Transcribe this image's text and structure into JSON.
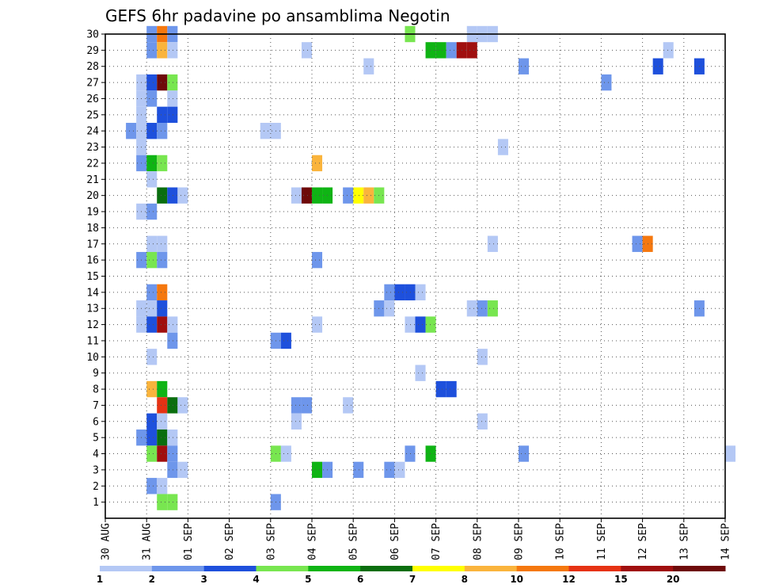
{
  "chart_data": {
    "type": "heatmap",
    "title": "GEFS 6hr padavine po ansamblima Negotin",
    "xlabel": "",
    "ylabel": "",
    "x_ticks": [
      "30 AUG",
      "31 AUG",
      "01 SEP",
      "02 SEP",
      "03 SEP",
      "04 SEP",
      "05 SEP",
      "06 SEP",
      "07 SEP",
      "08 SEP",
      "09 SEP",
      "10 SEP",
      "11 SEP",
      "12 SEP",
      "13 SEP",
      "14 SEP"
    ],
    "y_ticks": [
      "1",
      "2",
      "3",
      "4",
      "5",
      "6",
      "7",
      "8",
      "9",
      "10",
      "11",
      "12",
      "13",
      "14",
      "15",
      "16",
      "17",
      "18",
      "19",
      "20",
      "21",
      "22",
      "23",
      "24",
      "25",
      "26",
      "27",
      "28",
      "29",
      "30"
    ],
    "x_range_days": [
      0,
      15
    ],
    "y_range": [
      0,
      30
    ],
    "time_step_hours": 6,
    "grid": true,
    "colorbar": {
      "labels": [
        "1",
        "2",
        "3",
        "4",
        "5",
        "6",
        "7",
        "8",
        "10",
        "12",
        "15",
        "20"
      ],
      "colors": [
        "#b4c8f5",
        "#6e96eb",
        "#1e50dc",
        "#78e650",
        "#0fb414",
        "#0a6e0f",
        "#ffff00",
        "#fab43c",
        "#f5780f",
        "#e63214",
        "#a00f0f",
        "#6e0a0a"
      ]
    },
    "cells": [
      [
        1,
        30,
        "#6e96eb"
      ],
      [
        1.25,
        30,
        "#f5780f"
      ],
      [
        1.5,
        30,
        "#6e96eb"
      ],
      [
        7.25,
        30,
        "#78e650"
      ],
      [
        8.75,
        30,
        "#b4c8f5"
      ],
      [
        9,
        30,
        "#b4c8f5"
      ],
      [
        9.25,
        30,
        "#b4c8f5"
      ],
      [
        1,
        29,
        "#6e96eb"
      ],
      [
        1.25,
        29,
        "#fab43c"
      ],
      [
        1.5,
        29,
        "#b4c8f5"
      ],
      [
        4.75,
        29,
        "#b4c8f5"
      ],
      [
        7.75,
        29,
        "#0fb414"
      ],
      [
        8,
        29,
        "#0fb414"
      ],
      [
        8.25,
        29,
        "#6e96eb"
      ],
      [
        8.5,
        29,
        "#a00f0f"
      ],
      [
        8.75,
        29,
        "#a00f0f"
      ],
      [
        13.5,
        29,
        "#b4c8f5"
      ],
      [
        6.25,
        28,
        "#b4c8f5"
      ],
      [
        10,
        28,
        "#6e96eb"
      ],
      [
        13.25,
        28,
        "#1e50dc"
      ],
      [
        14.25,
        28,
        "#1e50dc"
      ],
      [
        0.75,
        27,
        "#b4c8f5"
      ],
      [
        1,
        27,
        "#1e50dc"
      ],
      [
        1.25,
        27,
        "#6e0a0a"
      ],
      [
        1.5,
        27,
        "#78e650"
      ],
      [
        12,
        27,
        "#6e96eb"
      ],
      [
        0.75,
        26,
        "#b4c8f5"
      ],
      [
        1,
        26,
        "#6e96eb"
      ],
      [
        1.5,
        26,
        "#b4c8f5"
      ],
      [
        0.75,
        25,
        "#b4c8f5"
      ],
      [
        1.25,
        25,
        "#1e50dc"
      ],
      [
        1.5,
        25,
        "#1e50dc"
      ],
      [
        0.5,
        24,
        "#6e96eb"
      ],
      [
        0.75,
        24,
        "#b4c8f5"
      ],
      [
        1,
        24,
        "#1e50dc"
      ],
      [
        1.25,
        24,
        "#6e96eb"
      ],
      [
        3.75,
        24,
        "#b4c8f5"
      ],
      [
        4,
        24,
        "#b4c8f5"
      ],
      [
        0.75,
        23,
        "#b4c8f5"
      ],
      [
        9.5,
        23,
        "#b4c8f5"
      ],
      [
        0.75,
        22,
        "#6e96eb"
      ],
      [
        1,
        22,
        "#0fb414"
      ],
      [
        1.25,
        22,
        "#78e650"
      ],
      [
        5,
        22,
        "#fab43c"
      ],
      [
        1,
        21,
        "#b4c8f5"
      ],
      [
        1.25,
        20,
        "#0a6e0f"
      ],
      [
        1.5,
        20,
        "#1e50dc"
      ],
      [
        1.75,
        20,
        "#b4c8f5"
      ],
      [
        4.5,
        20,
        "#b4c8f5"
      ],
      [
        4.75,
        20,
        "#6e0a0a"
      ],
      [
        5,
        20,
        "#0fb414"
      ],
      [
        5.25,
        20,
        "#0fb414"
      ],
      [
        5.75,
        20,
        "#6e96eb"
      ],
      [
        6,
        20,
        "#ffff00"
      ],
      [
        6.25,
        20,
        "#fab43c"
      ],
      [
        6.5,
        20,
        "#78e650"
      ],
      [
        0.75,
        19,
        "#b4c8f5"
      ],
      [
        1,
        19,
        "#6e96eb"
      ],
      [
        1,
        17,
        "#b4c8f5"
      ],
      [
        1.25,
        17,
        "#b4c8f5"
      ],
      [
        9.25,
        17,
        "#b4c8f5"
      ],
      [
        12.75,
        17,
        "#6e96eb"
      ],
      [
        13,
        17,
        "#f5780f"
      ],
      [
        0.75,
        16,
        "#6e96eb"
      ],
      [
        1,
        16,
        "#78e650"
      ],
      [
        1.25,
        16,
        "#6e96eb"
      ],
      [
        5,
        16,
        "#6e96eb"
      ],
      [
        1,
        14,
        "#6e96eb"
      ],
      [
        1.25,
        14,
        "#f5780f"
      ],
      [
        6.75,
        14,
        "#6e96eb"
      ],
      [
        7,
        14,
        "#1e50dc"
      ],
      [
        7.25,
        14,
        "#1e50dc"
      ],
      [
        7.5,
        14,
        "#b4c8f5"
      ],
      [
        0.75,
        13,
        "#b4c8f5"
      ],
      [
        1,
        13,
        "#b4c8f5"
      ],
      [
        1.25,
        13,
        "#1e50dc"
      ],
      [
        6.5,
        13,
        "#6e96eb"
      ],
      [
        6.75,
        13,
        "#b4c8f5"
      ],
      [
        8.75,
        13,
        "#b4c8f5"
      ],
      [
        9,
        13,
        "#6e96eb"
      ],
      [
        9.25,
        13,
        "#78e650"
      ],
      [
        14.25,
        13,
        "#6e96eb"
      ],
      [
        0.75,
        12,
        "#b4c8f5"
      ],
      [
        1,
        12,
        "#1e50dc"
      ],
      [
        1.25,
        12,
        "#a00f0f"
      ],
      [
        1.5,
        12,
        "#b4c8f5"
      ],
      [
        5,
        12,
        "#b4c8f5"
      ],
      [
        7.25,
        12,
        "#b4c8f5"
      ],
      [
        7.5,
        12,
        "#1e50dc"
      ],
      [
        7.75,
        12,
        "#78e650"
      ],
      [
        1.5,
        11,
        "#6e96eb"
      ],
      [
        4,
        11,
        "#6e96eb"
      ],
      [
        4.25,
        11,
        "#1e50dc"
      ],
      [
        1,
        10,
        "#b4c8f5"
      ],
      [
        9,
        10,
        "#b4c8f5"
      ],
      [
        7.5,
        9,
        "#b4c8f5"
      ],
      [
        1,
        8,
        "#fab43c"
      ],
      [
        1.25,
        8,
        "#0fb414"
      ],
      [
        8,
        8,
        "#1e50dc"
      ],
      [
        8.25,
        8,
        "#1e50dc"
      ],
      [
        1.25,
        7,
        "#e63214"
      ],
      [
        1.5,
        7,
        "#0a6e0f"
      ],
      [
        1.75,
        7,
        "#b4c8f5"
      ],
      [
        4.5,
        7,
        "#6e96eb"
      ],
      [
        4.75,
        7,
        "#6e96eb"
      ],
      [
        5.75,
        7,
        "#b4c8f5"
      ],
      [
        1,
        6,
        "#1e50dc"
      ],
      [
        1.25,
        6,
        "#b4c8f5"
      ],
      [
        4.5,
        6,
        "#b4c8f5"
      ],
      [
        9,
        6,
        "#b4c8f5"
      ],
      [
        0.75,
        5,
        "#6e96eb"
      ],
      [
        1,
        5,
        "#1e50dc"
      ],
      [
        1.25,
        5,
        "#0a6e0f"
      ],
      [
        1.5,
        5,
        "#b4c8f5"
      ],
      [
        1,
        4,
        "#78e650"
      ],
      [
        1.25,
        4,
        "#a00f0f"
      ],
      [
        1.5,
        4,
        "#6e96eb"
      ],
      [
        4,
        4,
        "#78e650"
      ],
      [
        4.25,
        4,
        "#b4c8f5"
      ],
      [
        7.25,
        4,
        "#6e96eb"
      ],
      [
        7.75,
        4,
        "#0fb414"
      ],
      [
        10,
        4,
        "#6e96eb"
      ],
      [
        15,
        4,
        "#b4c8f5"
      ],
      [
        1.5,
        3,
        "#6e96eb"
      ],
      [
        1.75,
        3,
        "#b4c8f5"
      ],
      [
        5,
        3,
        "#0fb414"
      ],
      [
        5.25,
        3,
        "#6e96eb"
      ],
      [
        6,
        3,
        "#6e96eb"
      ],
      [
        6.75,
        3,
        "#6e96eb"
      ],
      [
        7,
        3,
        "#b4c8f5"
      ],
      [
        1,
        2,
        "#6e96eb"
      ],
      [
        1.25,
        2,
        "#b4c8f5"
      ],
      [
        1.25,
        1,
        "#78e650"
      ],
      [
        1.5,
        1,
        "#78e650"
      ],
      [
        4,
        1,
        "#6e96eb"
      ]
    ]
  }
}
